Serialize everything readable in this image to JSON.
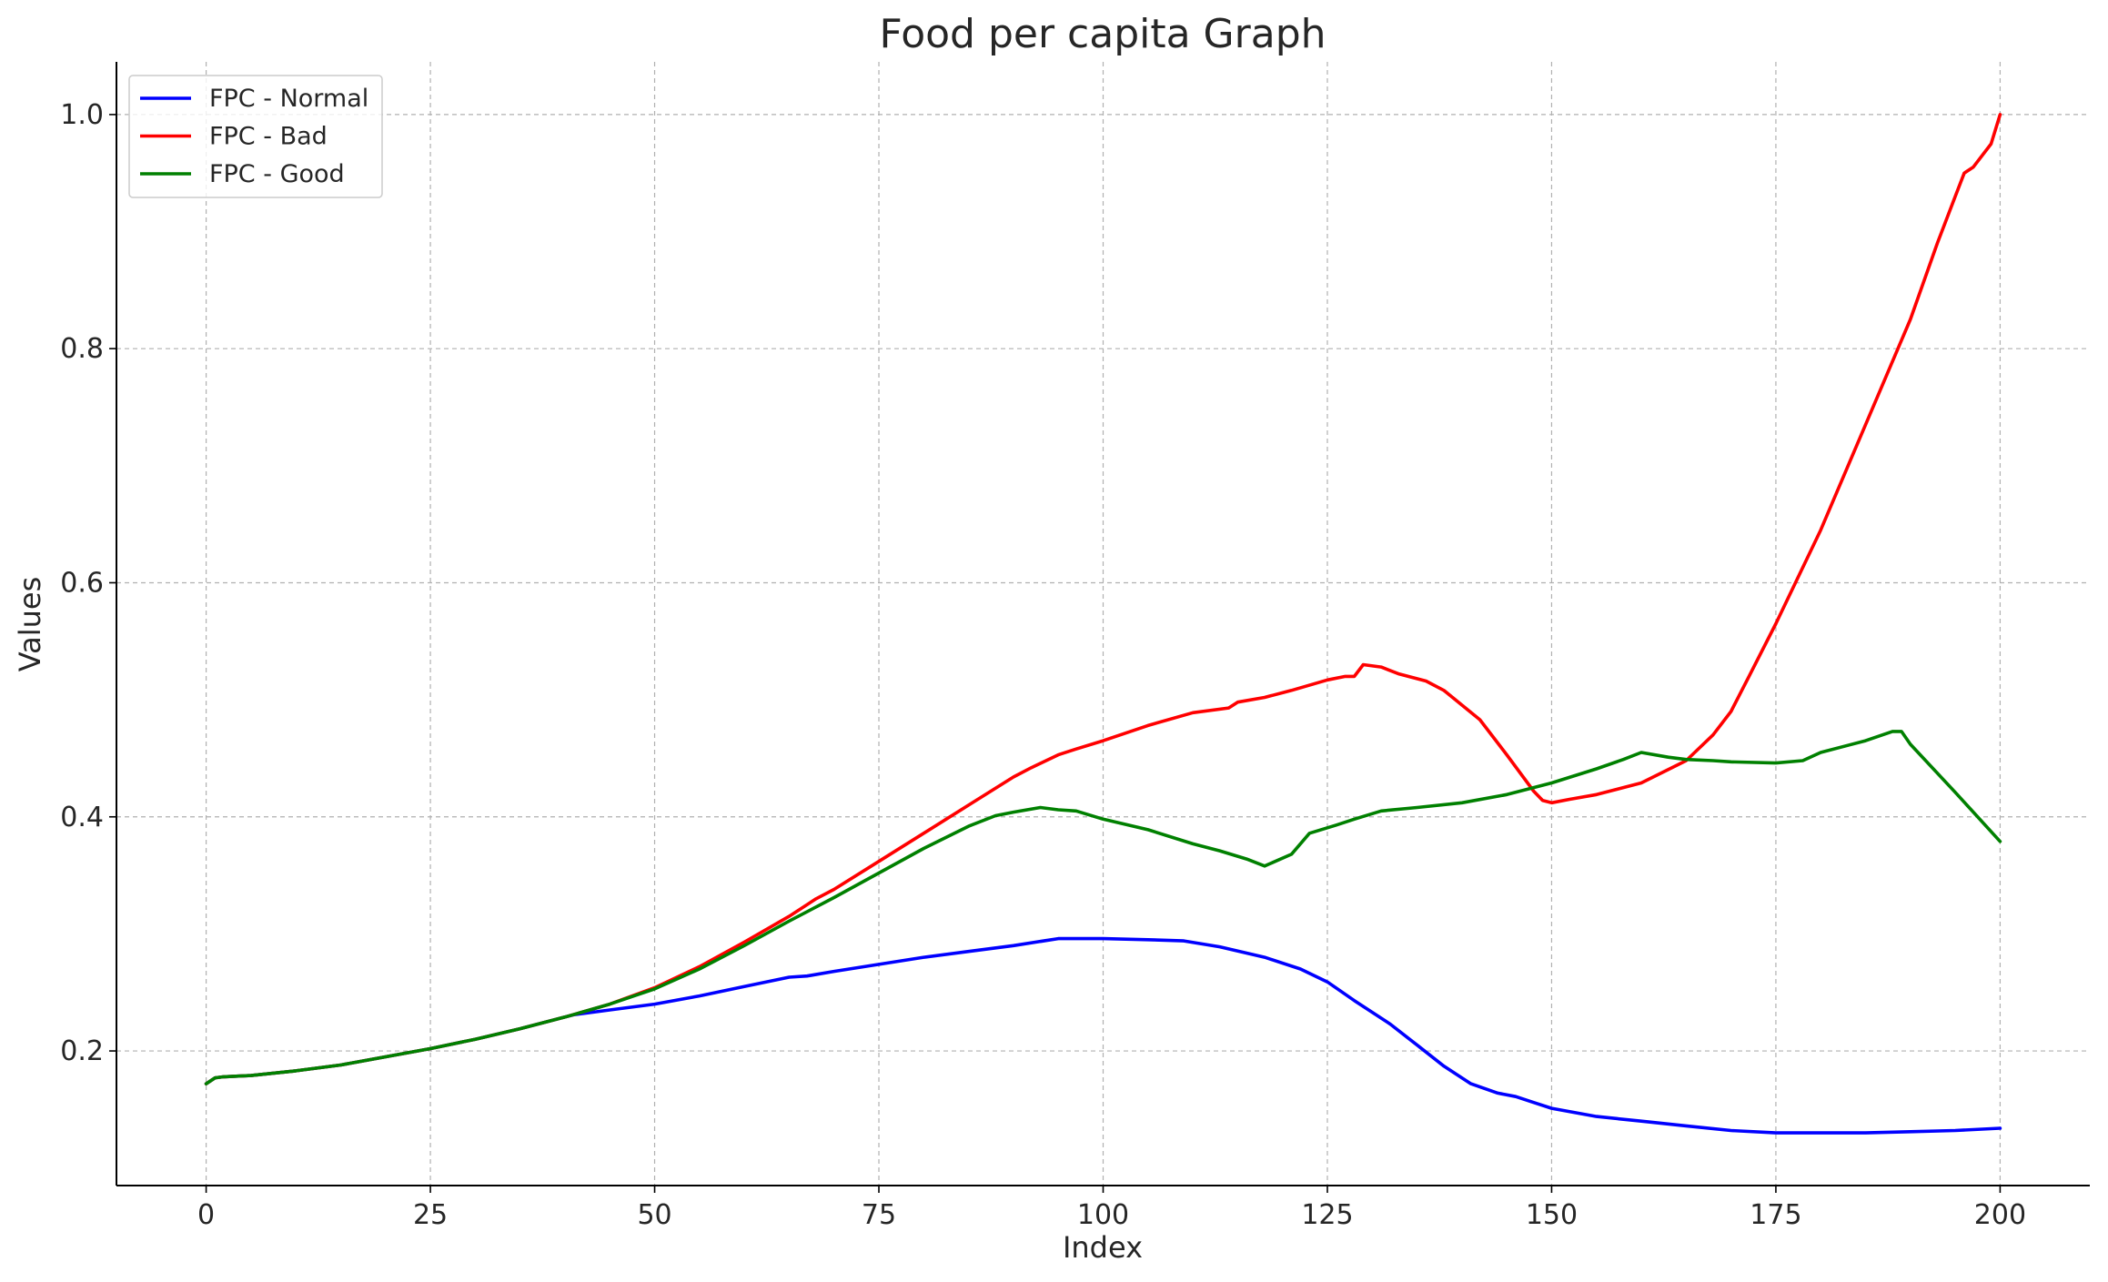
{
  "chart_data": {
    "type": "line",
    "title": "Food per capita Graph",
    "xlabel": "Index",
    "ylabel": "Values",
    "xlim": [
      -10,
      210
    ],
    "ylim": [
      0.085,
      1.045
    ],
    "xticks": [
      0,
      25,
      50,
      75,
      100,
      125,
      150,
      175,
      200
    ],
    "yticks": [
      0.2,
      0.4,
      0.6,
      0.8,
      1.0
    ],
    "grid": true,
    "legend_position": "top-left",
    "series": [
      {
        "name": "FPC - Normal",
        "color": "#0000ff",
        "points": [
          [
            0,
            0.172
          ],
          [
            1,
            0.177
          ],
          [
            2,
            0.178
          ],
          [
            5,
            0.179
          ],
          [
            10,
            0.183
          ],
          [
            15,
            0.188
          ],
          [
            20,
            0.195
          ],
          [
            25,
            0.202
          ],
          [
            30,
            0.21
          ],
          [
            35,
            0.219
          ],
          [
            40,
            0.229
          ],
          [
            41,
            0.231
          ],
          [
            45,
            0.235
          ],
          [
            50,
            0.24
          ],
          [
            55,
            0.247
          ],
          [
            60,
            0.255
          ],
          [
            65,
            0.263
          ],
          [
            67,
            0.264
          ],
          [
            70,
            0.268
          ],
          [
            75,
            0.274
          ],
          [
            80,
            0.28
          ],
          [
            85,
            0.285
          ],
          [
            90,
            0.29
          ],
          [
            95,
            0.296
          ],
          [
            97,
            0.296
          ],
          [
            100,
            0.296
          ],
          [
            105,
            0.295
          ],
          [
            109,
            0.294
          ],
          [
            113,
            0.289
          ],
          [
            118,
            0.28
          ],
          [
            122,
            0.27
          ],
          [
            125,
            0.259
          ],
          [
            128,
            0.243
          ],
          [
            132,
            0.223
          ],
          [
            135,
            0.205
          ],
          [
            138,
            0.187
          ],
          [
            141,
            0.172
          ],
          [
            144,
            0.164
          ],
          [
            146,
            0.161
          ],
          [
            148,
            0.156
          ],
          [
            150,
            0.151
          ],
          [
            155,
            0.144
          ],
          [
            160,
            0.14
          ],
          [
            165,
            0.136
          ],
          [
            170,
            0.132
          ],
          [
            175,
            0.13
          ],
          [
            180,
            0.13
          ],
          [
            185,
            0.13
          ],
          [
            190,
            0.131
          ],
          [
            195,
            0.132
          ],
          [
            200,
            0.134
          ]
        ]
      },
      {
        "name": "FPC - Bad",
        "color": "#ff0000",
        "points": [
          [
            0,
            0.172
          ],
          [
            1,
            0.177
          ],
          [
            2,
            0.178
          ],
          [
            5,
            0.179
          ],
          [
            10,
            0.183
          ],
          [
            15,
            0.188
          ],
          [
            20,
            0.195
          ],
          [
            25,
            0.202
          ],
          [
            30,
            0.21
          ],
          [
            35,
            0.219
          ],
          [
            40,
            0.229
          ],
          [
            45,
            0.24
          ],
          [
            50,
            0.254
          ],
          [
            55,
            0.272
          ],
          [
            60,
            0.293
          ],
          [
            65,
            0.315
          ],
          [
            68,
            0.33
          ],
          [
            70,
            0.338
          ],
          [
            75,
            0.362
          ],
          [
            80,
            0.386
          ],
          [
            85,
            0.41
          ],
          [
            90,
            0.434
          ],
          [
            92,
            0.442
          ],
          [
            95,
            0.453
          ],
          [
            97,
            0.458
          ],
          [
            100,
            0.465
          ],
          [
            105,
            0.478
          ],
          [
            110,
            0.489
          ],
          [
            114,
            0.493
          ],
          [
            115,
            0.498
          ],
          [
            118,
            0.502
          ],
          [
            121,
            0.508
          ],
          [
            125,
            0.517
          ],
          [
            127,
            0.52
          ],
          [
            128,
            0.52
          ],
          [
            129,
            0.53
          ],
          [
            131,
            0.528
          ],
          [
            133,
            0.522
          ],
          [
            136,
            0.516
          ],
          [
            138,
            0.508
          ],
          [
            142,
            0.483
          ],
          [
            145,
            0.453
          ],
          [
            148,
            0.422
          ],
          [
            149,
            0.414
          ],
          [
            150,
            0.412
          ],
          [
            152,
            0.415
          ],
          [
            155,
            0.419
          ],
          [
            160,
            0.429
          ],
          [
            165,
            0.448
          ],
          [
            168,
            0.47
          ],
          [
            170,
            0.49
          ],
          [
            172,
            0.52
          ],
          [
            175,
            0.565
          ],
          [
            180,
            0.645
          ],
          [
            185,
            0.735
          ],
          [
            190,
            0.825
          ],
          [
            193,
            0.89
          ],
          [
            195,
            0.93
          ],
          [
            196,
            0.95
          ],
          [
            197,
            0.955
          ],
          [
            199,
            0.975
          ],
          [
            200,
            1.0
          ]
        ]
      },
      {
        "name": "FPC - Good",
        "color": "#008000",
        "points": [
          [
            0,
            0.172
          ],
          [
            1,
            0.177
          ],
          [
            2,
            0.178
          ],
          [
            5,
            0.179
          ],
          [
            10,
            0.183
          ],
          [
            15,
            0.188
          ],
          [
            20,
            0.195
          ],
          [
            25,
            0.202
          ],
          [
            30,
            0.21
          ],
          [
            35,
            0.219
          ],
          [
            40,
            0.229
          ],
          [
            45,
            0.24
          ],
          [
            50,
            0.253
          ],
          [
            55,
            0.27
          ],
          [
            60,
            0.29
          ],
          [
            65,
            0.311
          ],
          [
            70,
            0.331
          ],
          [
            75,
            0.352
          ],
          [
            80,
            0.373
          ],
          [
            85,
            0.392
          ],
          [
            88,
            0.401
          ],
          [
            90,
            0.404
          ],
          [
            93,
            0.408
          ],
          [
            95,
            0.406
          ],
          [
            97,
            0.405
          ],
          [
            100,
            0.398
          ],
          [
            105,
            0.389
          ],
          [
            110,
            0.377
          ],
          [
            113,
            0.371
          ],
          [
            116,
            0.364
          ],
          [
            118,
            0.358
          ],
          [
            121,
            0.368
          ],
          [
            123,
            0.386
          ],
          [
            126,
            0.393
          ],
          [
            128,
            0.398
          ],
          [
            131,
            0.405
          ],
          [
            135,
            0.408
          ],
          [
            140,
            0.412
          ],
          [
            145,
            0.419
          ],
          [
            150,
            0.429
          ],
          [
            155,
            0.441
          ],
          [
            158,
            0.449
          ],
          [
            160,
            0.455
          ],
          [
            163,
            0.451
          ],
          [
            165,
            0.449
          ],
          [
            168,
            0.448
          ],
          [
            170,
            0.447
          ],
          [
            175,
            0.446
          ],
          [
            178,
            0.448
          ],
          [
            180,
            0.455
          ],
          [
            185,
            0.465
          ],
          [
            188,
            0.473
          ],
          [
            189,
            0.473
          ],
          [
            190,
            0.462
          ],
          [
            195,
            0.421
          ],
          [
            200,
            0.379
          ]
        ]
      }
    ]
  }
}
